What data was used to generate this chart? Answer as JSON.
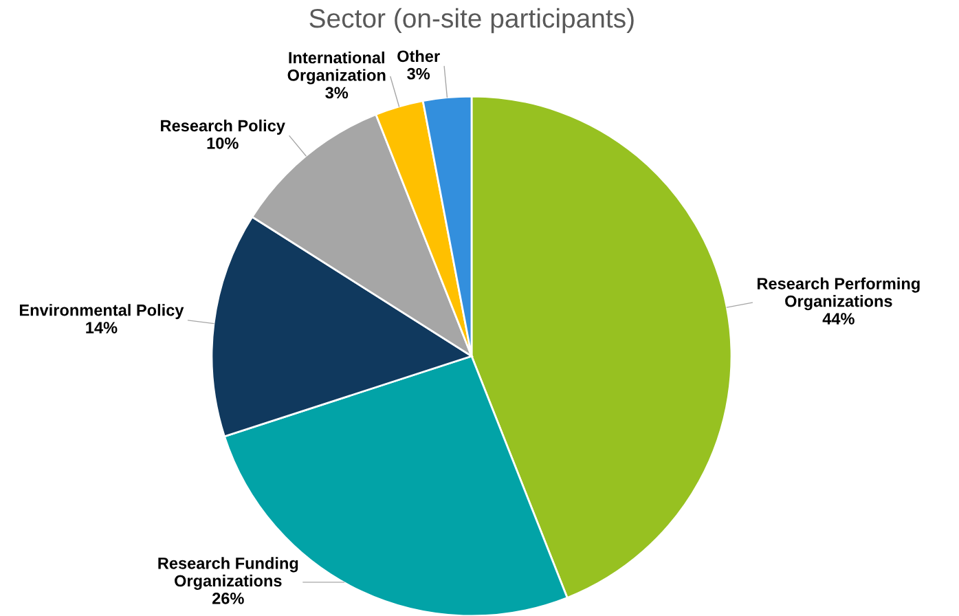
{
  "chart_data": {
    "type": "pie",
    "title": "Sector (on-site participants)",
    "categories": [
      "Research Performing\nOrganizations",
      "Research Funding\nOrganizations",
      "Environmental Policy",
      "Research Policy",
      "International\nOrganization",
      "Other"
    ],
    "values": [
      44,
      26,
      14,
      10,
      3,
      3
    ],
    "colors": [
      "#97c121",
      "#02a3a7",
      "#10395e",
      "#a6a6a6",
      "#ffc000",
      "#338fdd"
    ],
    "value_labels": [
      "44%",
      "26%",
      "14%",
      "10%",
      "3%",
      "3%"
    ],
    "legend": false
  }
}
